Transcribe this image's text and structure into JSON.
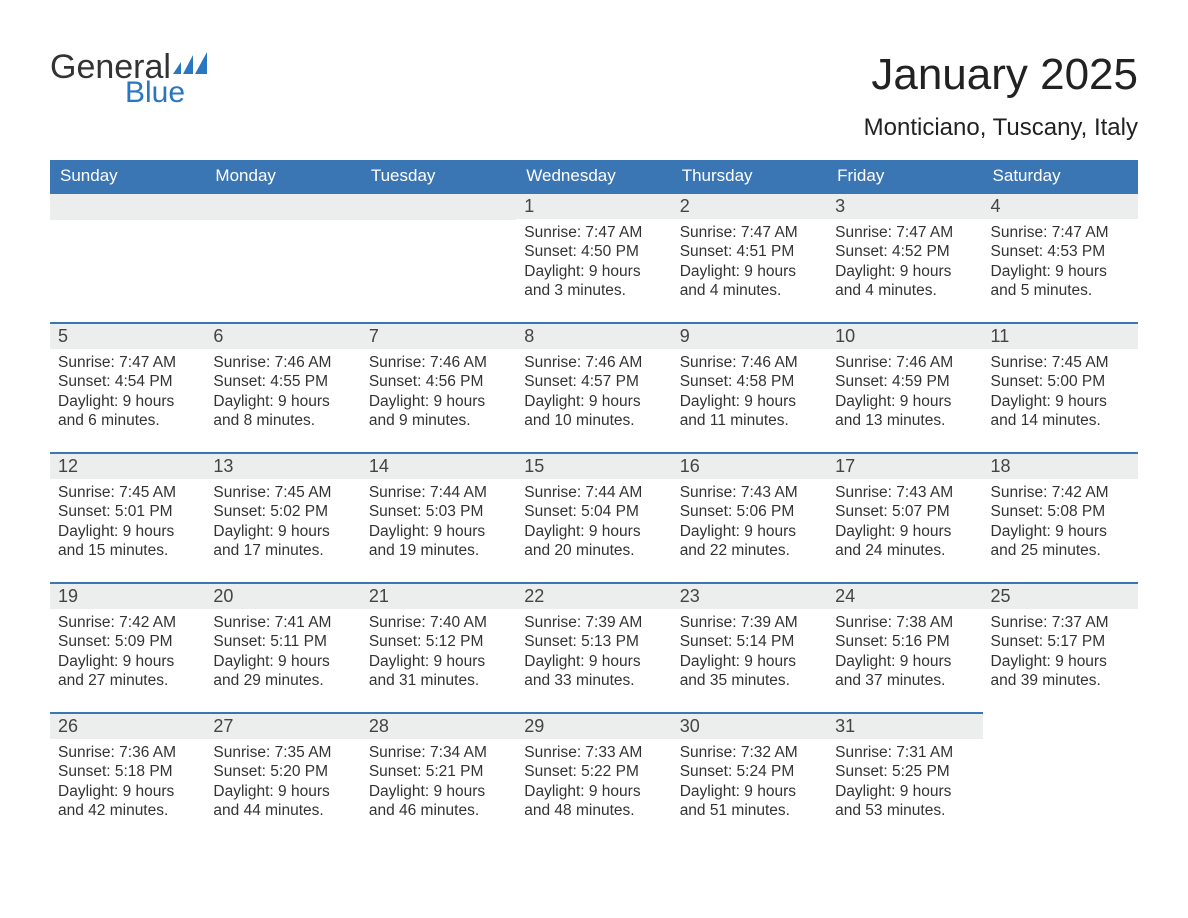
{
  "brand": {
    "part1": "General",
    "part2": "Blue",
    "logo_color": "#2b76c0"
  },
  "title": "January 2025",
  "location": "Monticiano, Tuscany, Italy",
  "colors": {
    "header_bg": "#3b76b4",
    "header_text": "#ffffff",
    "daynum_bg": "#eceded",
    "dayborder": "#3b76b4",
    "body_text": "#333333",
    "page_bg": "#ffffff"
  },
  "weekdays": [
    "Sunday",
    "Monday",
    "Tuesday",
    "Wednesday",
    "Thursday",
    "Friday",
    "Saturday"
  ],
  "weeks": [
    [
      null,
      null,
      null,
      {
        "n": "1",
        "sunrise": "7:47 AM",
        "sunset": "4:50 PM",
        "day_h": "9",
        "day_m": "3"
      },
      {
        "n": "2",
        "sunrise": "7:47 AM",
        "sunset": "4:51 PM",
        "day_h": "9",
        "day_m": "4"
      },
      {
        "n": "3",
        "sunrise": "7:47 AM",
        "sunset": "4:52 PM",
        "day_h": "9",
        "day_m": "4"
      },
      {
        "n": "4",
        "sunrise": "7:47 AM",
        "sunset": "4:53 PM",
        "day_h": "9",
        "day_m": "5"
      }
    ],
    [
      {
        "n": "5",
        "sunrise": "7:47 AM",
        "sunset": "4:54 PM",
        "day_h": "9",
        "day_m": "6"
      },
      {
        "n": "6",
        "sunrise": "7:46 AM",
        "sunset": "4:55 PM",
        "day_h": "9",
        "day_m": "8"
      },
      {
        "n": "7",
        "sunrise": "7:46 AM",
        "sunset": "4:56 PM",
        "day_h": "9",
        "day_m": "9"
      },
      {
        "n": "8",
        "sunrise": "7:46 AM",
        "sunset": "4:57 PM",
        "day_h": "9",
        "day_m": "10"
      },
      {
        "n": "9",
        "sunrise": "7:46 AM",
        "sunset": "4:58 PM",
        "day_h": "9",
        "day_m": "11"
      },
      {
        "n": "10",
        "sunrise": "7:46 AM",
        "sunset": "4:59 PM",
        "day_h": "9",
        "day_m": "13"
      },
      {
        "n": "11",
        "sunrise": "7:45 AM",
        "sunset": "5:00 PM",
        "day_h": "9",
        "day_m": "14"
      }
    ],
    [
      {
        "n": "12",
        "sunrise": "7:45 AM",
        "sunset": "5:01 PM",
        "day_h": "9",
        "day_m": "15"
      },
      {
        "n": "13",
        "sunrise": "7:45 AM",
        "sunset": "5:02 PM",
        "day_h": "9",
        "day_m": "17"
      },
      {
        "n": "14",
        "sunrise": "7:44 AM",
        "sunset": "5:03 PM",
        "day_h": "9",
        "day_m": "19"
      },
      {
        "n": "15",
        "sunrise": "7:44 AM",
        "sunset": "5:04 PM",
        "day_h": "9",
        "day_m": "20"
      },
      {
        "n": "16",
        "sunrise": "7:43 AM",
        "sunset": "5:06 PM",
        "day_h": "9",
        "day_m": "22"
      },
      {
        "n": "17",
        "sunrise": "7:43 AM",
        "sunset": "5:07 PM",
        "day_h": "9",
        "day_m": "24"
      },
      {
        "n": "18",
        "sunrise": "7:42 AM",
        "sunset": "5:08 PM",
        "day_h": "9",
        "day_m": "25"
      }
    ],
    [
      {
        "n": "19",
        "sunrise": "7:42 AM",
        "sunset": "5:09 PM",
        "day_h": "9",
        "day_m": "27"
      },
      {
        "n": "20",
        "sunrise": "7:41 AM",
        "sunset": "5:11 PM",
        "day_h": "9",
        "day_m": "29"
      },
      {
        "n": "21",
        "sunrise": "7:40 AM",
        "sunset": "5:12 PM",
        "day_h": "9",
        "day_m": "31"
      },
      {
        "n": "22",
        "sunrise": "7:39 AM",
        "sunset": "5:13 PM",
        "day_h": "9",
        "day_m": "33"
      },
      {
        "n": "23",
        "sunrise": "7:39 AM",
        "sunset": "5:14 PM",
        "day_h": "9",
        "day_m": "35"
      },
      {
        "n": "24",
        "sunrise": "7:38 AM",
        "sunset": "5:16 PM",
        "day_h": "9",
        "day_m": "37"
      },
      {
        "n": "25",
        "sunrise": "7:37 AM",
        "sunset": "5:17 PM",
        "day_h": "9",
        "day_m": "39"
      }
    ],
    [
      {
        "n": "26",
        "sunrise": "7:36 AM",
        "sunset": "5:18 PM",
        "day_h": "9",
        "day_m": "42"
      },
      {
        "n": "27",
        "sunrise": "7:35 AM",
        "sunset": "5:20 PM",
        "day_h": "9",
        "day_m": "44"
      },
      {
        "n": "28",
        "sunrise": "7:34 AM",
        "sunset": "5:21 PM",
        "day_h": "9",
        "day_m": "46"
      },
      {
        "n": "29",
        "sunrise": "7:33 AM",
        "sunset": "5:22 PM",
        "day_h": "9",
        "day_m": "48"
      },
      {
        "n": "30",
        "sunrise": "7:32 AM",
        "sunset": "5:24 PM",
        "day_h": "9",
        "day_m": "51"
      },
      {
        "n": "31",
        "sunrise": "7:31 AM",
        "sunset": "5:25 PM",
        "day_h": "9",
        "day_m": "53"
      },
      null
    ]
  ],
  "labels": {
    "sunrise": "Sunrise:",
    "sunset": "Sunset:",
    "daylight": "Daylight:",
    "hours": "hours",
    "and": "and",
    "minutes": "minutes."
  }
}
